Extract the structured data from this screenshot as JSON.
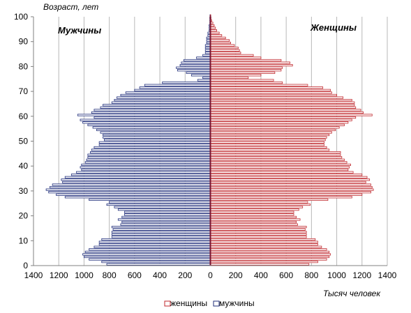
{
  "chart_data": {
    "type": "bar",
    "orientation": "horizontal",
    "ylabel": "Возраст,  лет",
    "xlabel": "Тысяч человек",
    "left_label": "Мужчины",
    "right_label": "Женщины",
    "xlim": [
      -1400,
      1400
    ],
    "ylim": [
      0,
      100
    ],
    "x_ticks": [
      -1400,
      -1200,
      -1000,
      -800,
      -600,
      -400,
      -200,
      0,
      200,
      400,
      600,
      800,
      1000,
      1200,
      1400
    ],
    "x_tick_labels": [
      "1400",
      "1200",
      "1000",
      "800",
      "600",
      "400",
      "200",
      "0",
      "200",
      "400",
      "600",
      "800",
      "1000",
      "1200",
      "1400"
    ],
    "y_ticks": [
      0,
      10,
      20,
      30,
      40,
      50,
      60,
      70,
      80,
      90,
      100
    ],
    "y_tick_labels": [
      "0",
      "10",
      "20",
      "30",
      "40",
      "50",
      "60",
      "70",
      "80",
      "90",
      "100"
    ],
    "grid": "vertical",
    "legend": {
      "position": "bottom",
      "entries": [
        {
          "label": "женщины",
          "color": "#c0282d"
        },
        {
          "label": "мужчины",
          "color": "#1f2d7a"
        }
      ]
    },
    "series": [
      {
        "name": "мужчины",
        "color": "#1f2d7a",
        "ages": [
          0,
          1,
          2,
          3,
          4,
          5,
          6,
          7,
          8,
          9,
          10,
          11,
          12,
          13,
          14,
          15,
          16,
          17,
          18,
          19,
          20,
          21,
          22,
          23,
          24,
          25,
          26,
          27,
          28,
          29,
          30,
          31,
          32,
          33,
          34,
          35,
          36,
          37,
          38,
          39,
          40,
          41,
          42,
          43,
          44,
          45,
          46,
          47,
          48,
          49,
          50,
          51,
          52,
          53,
          54,
          55,
          56,
          57,
          58,
          59,
          60,
          61,
          62,
          63,
          64,
          65,
          66,
          67,
          68,
          69,
          70,
          71,
          72,
          73,
          74,
          75,
          76,
          77,
          78,
          79,
          80,
          81,
          82,
          83,
          84,
          85,
          86,
          87,
          88,
          89,
          90,
          91,
          92,
          93,
          94,
          95,
          96,
          97,
          98,
          99,
          100
        ],
        "values": [
          820,
          860,
          960,
          1000,
          1010,
          990,
          960,
          920,
          880,
          880,
          860,
          780,
          780,
          780,
          770,
          780,
          710,
          700,
          730,
          700,
          680,
          680,
          730,
          760,
          820,
          800,
          960,
          1150,
          1220,
          1280,
          1300,
          1270,
          1250,
          1170,
          1180,
          1150,
          1100,
          1060,
          1020,
          1030,
          1020,
          990,
          980,
          970,
          970,
          950,
          940,
          920,
          880,
          880,
          840,
          850,
          850,
          870,
          900,
          930,
          970,
          1010,
          1030,
          920,
          1050,
          940,
          920,
          870,
          850,
          780,
          760,
          740,
          710,
          670,
          600,
          560,
          520,
          380,
          100,
          60,
          150,
          190,
          260,
          270,
          240,
          230,
          210,
          110,
          60,
          40,
          40,
          40,
          40,
          30,
          30,
          30,
          20,
          20,
          10,
          10,
          10,
          5,
          5,
          5,
          3
        ]
      },
      {
        "name": "женщины",
        "color": "#c0282d",
        "ages": [
          0,
          1,
          2,
          3,
          4,
          5,
          6,
          7,
          8,
          9,
          10,
          11,
          12,
          13,
          14,
          15,
          16,
          17,
          18,
          19,
          20,
          21,
          22,
          23,
          24,
          25,
          26,
          27,
          28,
          29,
          30,
          31,
          32,
          33,
          34,
          35,
          36,
          37,
          38,
          39,
          40,
          41,
          42,
          43,
          44,
          45,
          46,
          47,
          48,
          49,
          50,
          51,
          52,
          53,
          54,
          55,
          56,
          57,
          58,
          59,
          60,
          61,
          62,
          63,
          64,
          65,
          66,
          67,
          68,
          69,
          70,
          71,
          72,
          73,
          74,
          75,
          76,
          77,
          78,
          79,
          80,
          81,
          82,
          83,
          84,
          85,
          86,
          87,
          88,
          89,
          90,
          91,
          92,
          93,
          94,
          95,
          96,
          97,
          98,
          99,
          100
        ],
        "values": [
          780,
          850,
          920,
          940,
          950,
          940,
          920,
          880,
          850,
          850,
          830,
          760,
          760,
          760,
          750,
          760,
          690,
          680,
          710,
          680,
          660,
          660,
          700,
          730,
          790,
          770,
          930,
          1120,
          1200,
          1270,
          1290,
          1280,
          1270,
          1230,
          1260,
          1240,
          1200,
          1130,
          1090,
          1100,
          1110,
          1080,
          1060,
          1040,
          1030,
          1030,
          940,
          920,
          900,
          900,
          910,
          920,
          940,
          960,
          990,
          1020,
          1060,
          1090,
          1120,
          1150,
          1280,
          1210,
          1190,
          1150,
          1140,
          1140,
          1120,
          1050,
          1000,
          960,
          950,
          890,
          770,
          570,
          500,
          300,
          400,
          510,
          560,
          570,
          650,
          630,
          560,
          400,
          340,
          240,
          230,
          220,
          190,
          160,
          150,
          120,
          90,
          70,
          50,
          40,
          30,
          20,
          10,
          5,
          3
        ]
      }
    ]
  }
}
